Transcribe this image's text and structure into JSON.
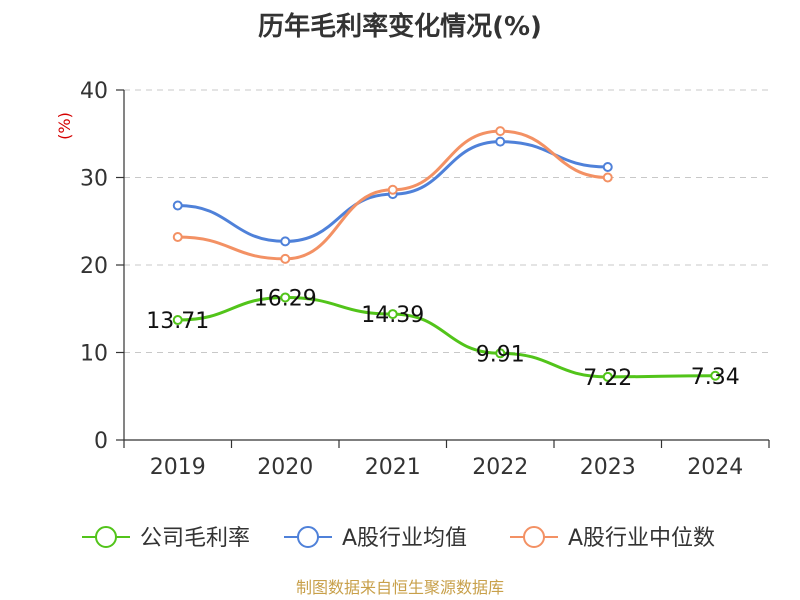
{
  "chart_data": {
    "type": "line",
    "title": "历年毛利率变化情况(%)",
    "ylabel": "(%)",
    "xlabel": "",
    "categories": [
      "2019",
      "2020",
      "2021",
      "2022",
      "2023",
      "2024"
    ],
    "ylim": [
      0,
      40
    ],
    "yticks": [
      "0",
      "10",
      "20",
      "30",
      "40"
    ],
    "grid": true,
    "legend_position": "bottom",
    "series": [
      {
        "name": "公司毛利率",
        "color": "#52c41a",
        "values": [
          13.71,
          16.29,
          14.39,
          9.91,
          7.22,
          7.34
        ],
        "labels": [
          "13.71",
          "16.29",
          "14.39",
          "9.91",
          "7.22",
          "7.34"
        ]
      },
      {
        "name": "A股行业均值",
        "color": "#4f81d9",
        "values": [
          26.8,
          22.7,
          28.1,
          34.1,
          31.2,
          null
        ]
      },
      {
        "name": "A股行业中位数",
        "color": "#f39164",
        "values": [
          23.2,
          20.7,
          28.6,
          35.3,
          30.0,
          null
        ]
      }
    ]
  },
  "source": "制图数据来自恒生聚源数据库"
}
